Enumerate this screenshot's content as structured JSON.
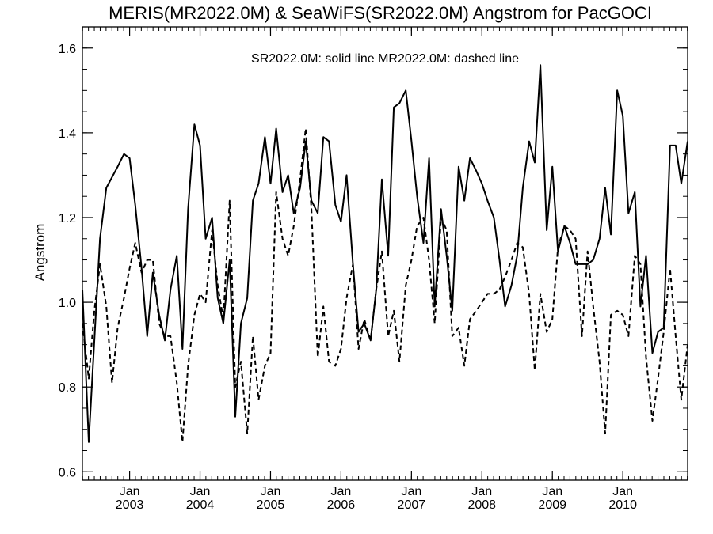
{
  "chart_data": {
    "type": "line",
    "title": "MERIS(MR2022.0M) & SeaWiFS(SR2022.0M)  Angstrom for PacGOCI",
    "annotation": "SR2022.0M: solid line   MR2022.0M: dashed line",
    "ylabel": "Angstrom",
    "xlabel": "",
    "xlim": [
      2002.33,
      2010.92
    ],
    "ylim": [
      0.58,
      1.65
    ],
    "yticks": [
      0.6,
      0.8,
      1.0,
      1.2,
      1.4,
      1.6
    ],
    "ytick_labels": [
      "0.6",
      "0.8",
      "1.0",
      "1.2",
      "1.4",
      "1.6"
    ],
    "xticks": [
      {
        "x": 2003.0,
        "month": "Jan",
        "year": "2003"
      },
      {
        "x": 2004.0,
        "month": "Jan",
        "year": "2004"
      },
      {
        "x": 2005.0,
        "month": "Jan",
        "year": "2005"
      },
      {
        "x": 2006.0,
        "month": "Jan",
        "year": "2006"
      },
      {
        "x": 2007.0,
        "month": "Jan",
        "year": "2007"
      },
      {
        "x": 2008.0,
        "month": "Jan",
        "year": "2008"
      },
      {
        "x": 2009.0,
        "month": "Jan",
        "year": "2009"
      },
      {
        "x": 2010.0,
        "month": "Jan",
        "year": "2010"
      }
    ],
    "minor_tick_step": 0.0833333,
    "grid": false,
    "legend": "none",
    "series": [
      {
        "style": "solid",
        "color": "#000000",
        "points": [
          [
            2002.33,
            1.03
          ],
          [
            2002.42,
            0.67
          ],
          [
            2002.58,
            1.15
          ],
          [
            2002.67,
            1.27
          ],
          [
            2002.83,
            1.32
          ],
          [
            2002.92,
            1.35
          ],
          [
            2003.0,
            1.34
          ],
          [
            2003.08,
            1.23
          ],
          [
            2003.17,
            1.08
          ],
          [
            2003.25,
            0.92
          ],
          [
            2003.33,
            1.07
          ],
          [
            2003.42,
            0.97
          ],
          [
            2003.5,
            0.91
          ],
          [
            2003.58,
            1.03
          ],
          [
            2003.67,
            1.11
          ],
          [
            2003.75,
            0.89
          ],
          [
            2003.83,
            1.22
          ],
          [
            2003.92,
            1.42
          ],
          [
            2004.0,
            1.37
          ],
          [
            2004.08,
            1.15
          ],
          [
            2004.17,
            1.2
          ],
          [
            2004.25,
            1.01
          ],
          [
            2004.33,
            0.95
          ],
          [
            2004.42,
            1.1
          ],
          [
            2004.5,
            0.73
          ],
          [
            2004.58,
            0.95
          ],
          [
            2004.67,
            1.01
          ],
          [
            2004.75,
            1.24
          ],
          [
            2004.83,
            1.28
          ],
          [
            2004.92,
            1.39
          ],
          [
            2005.0,
            1.28
          ],
          [
            2005.08,
            1.41
          ],
          [
            2005.17,
            1.26
          ],
          [
            2005.25,
            1.3
          ],
          [
            2005.33,
            1.21
          ],
          [
            2005.42,
            1.27
          ],
          [
            2005.5,
            1.38
          ],
          [
            2005.58,
            1.24
          ],
          [
            2005.67,
            1.21
          ],
          [
            2005.75,
            1.39
          ],
          [
            2005.83,
            1.38
          ],
          [
            2005.92,
            1.23
          ],
          [
            2006.0,
            1.19
          ],
          [
            2006.08,
            1.3
          ],
          [
            2006.17,
            1.09
          ],
          [
            2006.25,
            0.93
          ],
          [
            2006.33,
            0.95
          ],
          [
            2006.42,
            0.91
          ],
          [
            2006.5,
            1.03
          ],
          [
            2006.58,
            1.29
          ],
          [
            2006.67,
            1.11
          ],
          [
            2006.75,
            1.46
          ],
          [
            2006.83,
            1.47
          ],
          [
            2006.92,
            1.5
          ],
          [
            2007.0,
            1.38
          ],
          [
            2007.08,
            1.25
          ],
          [
            2007.17,
            1.14
          ],
          [
            2007.25,
            1.34
          ],
          [
            2007.33,
            0.99
          ],
          [
            2007.42,
            1.22
          ],
          [
            2007.5,
            1.11
          ],
          [
            2007.58,
            0.98
          ],
          [
            2007.67,
            1.32
          ],
          [
            2007.75,
            1.24
          ],
          [
            2007.83,
            1.34
          ],
          [
            2007.92,
            1.31
          ],
          [
            2008.0,
            1.28
          ],
          [
            2008.08,
            1.24
          ],
          [
            2008.17,
            1.2
          ],
          [
            2008.25,
            1.1
          ],
          [
            2008.33,
            0.99
          ],
          [
            2008.42,
            1.04
          ],
          [
            2008.5,
            1.11
          ],
          [
            2008.58,
            1.27
          ],
          [
            2008.67,
            1.38
          ],
          [
            2008.75,
            1.33
          ],
          [
            2008.83,
            1.56
          ],
          [
            2008.92,
            1.17
          ],
          [
            2009.0,
            1.32
          ],
          [
            2009.08,
            1.12
          ],
          [
            2009.17,
            1.18
          ],
          [
            2009.25,
            1.14
          ],
          [
            2009.33,
            1.09
          ],
          [
            2009.42,
            1.09
          ],
          [
            2009.5,
            1.09
          ],
          [
            2009.58,
            1.1
          ],
          [
            2009.67,
            1.15
          ],
          [
            2009.75,
            1.27
          ],
          [
            2009.83,
            1.16
          ],
          [
            2009.92,
            1.5
          ],
          [
            2010.0,
            1.44
          ],
          [
            2010.08,
            1.21
          ],
          [
            2010.17,
            1.26
          ],
          [
            2010.25,
            0.99
          ],
          [
            2010.33,
            1.11
          ],
          [
            2010.42,
            0.88
          ],
          [
            2010.5,
            0.93
          ],
          [
            2010.58,
            0.94
          ],
          [
            2010.67,
            1.37
          ],
          [
            2010.75,
            1.37
          ],
          [
            2010.83,
            1.28
          ],
          [
            2010.92,
            1.38
          ]
        ]
      },
      {
        "style": "dashed",
        "color": "#000000",
        "points": [
          [
            2002.33,
            0.95
          ],
          [
            2002.42,
            0.82
          ],
          [
            2002.5,
            0.98
          ],
          [
            2002.58,
            1.09
          ],
          [
            2002.67,
            0.99
          ],
          [
            2002.75,
            0.81
          ],
          [
            2002.83,
            0.94
          ],
          [
            2002.92,
            1.01
          ],
          [
            2003.0,
            1.08
          ],
          [
            2003.08,
            1.14
          ],
          [
            2003.17,
            1.07
          ],
          [
            2003.25,
            1.1
          ],
          [
            2003.33,
            1.1
          ],
          [
            2003.42,
            0.95
          ],
          [
            2003.5,
            0.92
          ],
          [
            2003.58,
            0.92
          ],
          [
            2003.67,
            0.81
          ],
          [
            2003.75,
            0.67
          ],
          [
            2003.83,
            0.85
          ],
          [
            2003.92,
            0.97
          ],
          [
            2004.0,
            1.02
          ],
          [
            2004.08,
            1.0
          ],
          [
            2004.17,
            1.17
          ],
          [
            2004.25,
            1.04
          ],
          [
            2004.33,
            0.96
          ],
          [
            2004.42,
            1.24
          ],
          [
            2004.5,
            0.8
          ],
          [
            2004.58,
            0.86
          ],
          [
            2004.67,
            0.69
          ],
          [
            2004.75,
            0.92
          ],
          [
            2004.83,
            0.77
          ],
          [
            2004.92,
            0.85
          ],
          [
            2005.0,
            0.88
          ],
          [
            2005.08,
            1.26
          ],
          [
            2005.17,
            1.15
          ],
          [
            2005.25,
            1.11
          ],
          [
            2005.33,
            1.18
          ],
          [
            2005.42,
            1.29
          ],
          [
            2005.5,
            1.41
          ],
          [
            2005.58,
            1.22
          ],
          [
            2005.67,
            0.87
          ],
          [
            2005.75,
            0.99
          ],
          [
            2005.83,
            0.86
          ],
          [
            2005.92,
            0.85
          ],
          [
            2006.0,
            0.89
          ],
          [
            2006.08,
            1.01
          ],
          [
            2006.17,
            1.09
          ],
          [
            2006.25,
            0.89
          ],
          [
            2006.33,
            0.96
          ],
          [
            2006.42,
            0.91
          ],
          [
            2006.5,
            1.03
          ],
          [
            2006.58,
            1.12
          ],
          [
            2006.67,
            0.92
          ],
          [
            2006.75,
            0.98
          ],
          [
            2006.83,
            0.86
          ],
          [
            2006.92,
            1.04
          ],
          [
            2007.0,
            1.1
          ],
          [
            2007.08,
            1.18
          ],
          [
            2007.17,
            1.2
          ],
          [
            2007.25,
            1.1
          ],
          [
            2007.33,
            0.95
          ],
          [
            2007.42,
            1.2
          ],
          [
            2007.5,
            1.17
          ],
          [
            2007.58,
            0.92
          ],
          [
            2007.67,
            0.94
          ],
          [
            2007.75,
            0.85
          ],
          [
            2007.83,
            0.96
          ],
          [
            2007.92,
            0.98
          ],
          [
            2008.0,
            1.0
          ],
          [
            2008.08,
            1.02
          ],
          [
            2008.17,
            1.02
          ],
          [
            2008.25,
            1.03
          ],
          [
            2008.33,
            1.06
          ],
          [
            2008.42,
            1.1
          ],
          [
            2008.5,
            1.14
          ],
          [
            2008.58,
            1.13
          ],
          [
            2008.67,
            1.02
          ],
          [
            2008.75,
            0.84
          ],
          [
            2008.83,
            1.02
          ],
          [
            2008.92,
            0.93
          ],
          [
            2009.0,
            0.96
          ],
          [
            2009.08,
            1.13
          ],
          [
            2009.17,
            1.18
          ],
          [
            2009.25,
            1.17
          ],
          [
            2009.33,
            1.15
          ],
          [
            2009.42,
            0.92
          ],
          [
            2009.5,
            1.12
          ],
          [
            2009.58,
            0.99
          ],
          [
            2009.67,
            0.86
          ],
          [
            2009.75,
            0.69
          ],
          [
            2009.83,
            0.97
          ],
          [
            2009.92,
            0.98
          ],
          [
            2010.0,
            0.97
          ],
          [
            2010.08,
            0.92
          ],
          [
            2010.17,
            1.11
          ],
          [
            2010.25,
            1.09
          ],
          [
            2010.33,
            0.87
          ],
          [
            2010.42,
            0.72
          ],
          [
            2010.5,
            0.82
          ],
          [
            2010.58,
            0.93
          ],
          [
            2010.67,
            1.08
          ],
          [
            2010.75,
            0.92
          ],
          [
            2010.83,
            0.77
          ],
          [
            2010.92,
            0.9
          ]
        ]
      }
    ]
  }
}
